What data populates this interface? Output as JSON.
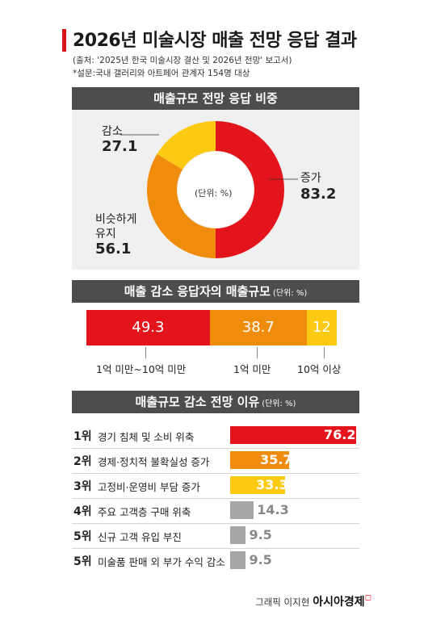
{
  "header": {
    "title": "2026년 미술시장 매출 전망 응답 결과",
    "source": "(출처: '2025년 한국 미술시장 결산 및 2026년 전망' 보고서)",
    "survey": "*설문:국내 갤러리와 아트페어 관계자 154명 대상"
  },
  "colors": {
    "red": "#e3141c",
    "orange": "#f08c0c",
    "yellow": "#fcc913",
    "gray": "#a6a6a6",
    "header_bg": "#4d4d4d"
  },
  "chart_data": [
    {
      "type": "pie",
      "title": "매출규모 전망 응답 비중",
      "unit": "(단위: %)",
      "slices": [
        {
          "label": "증가",
          "value": 83.2,
          "color": "#e3141c"
        },
        {
          "label": "비슷하게 유지",
          "value": 56.1,
          "color": "#f08c0c"
        },
        {
          "label": "감소",
          "value": 27.1,
          "color": "#fcc913"
        }
      ]
    },
    {
      "type": "bar",
      "title": "매출 감소 응답자의 매출규모",
      "unit": "(단위: %)",
      "categories": [
        "1억 미만~10억 미만",
        "1억 미만",
        "10억 이상"
      ],
      "values": [
        49.3,
        38.7,
        12
      ],
      "colors": [
        "#e3141c",
        "#f08c0c",
        "#fcc913"
      ]
    },
    {
      "type": "bar",
      "title": "매출규모 감소 전망 이유",
      "unit": "(단위: %)",
      "ranks": [
        "1위",
        "2위",
        "3위",
        "4위",
        "5위",
        "5위"
      ],
      "categories": [
        "경기 침체 및 소비 위축",
        "경제·정치적 불확실성 증가",
        "고정비·운영비 부담 증가",
        "주요 고객층 구매 위축",
        "신규 고객 유입 부진",
        "미술품 판매 외 부가 수익 감소"
      ],
      "values": [
        76.2,
        35.7,
        33.3,
        14.3,
        9.5,
        9.5
      ],
      "colors": [
        "#e3141c",
        "#f08c0c",
        "#fcc913",
        "#a6a6a6",
        "#a6a6a6",
        "#a6a6a6"
      ]
    }
  ],
  "credit": {
    "prefix": "그래픽 이지현",
    "brand": "아시아경제"
  }
}
